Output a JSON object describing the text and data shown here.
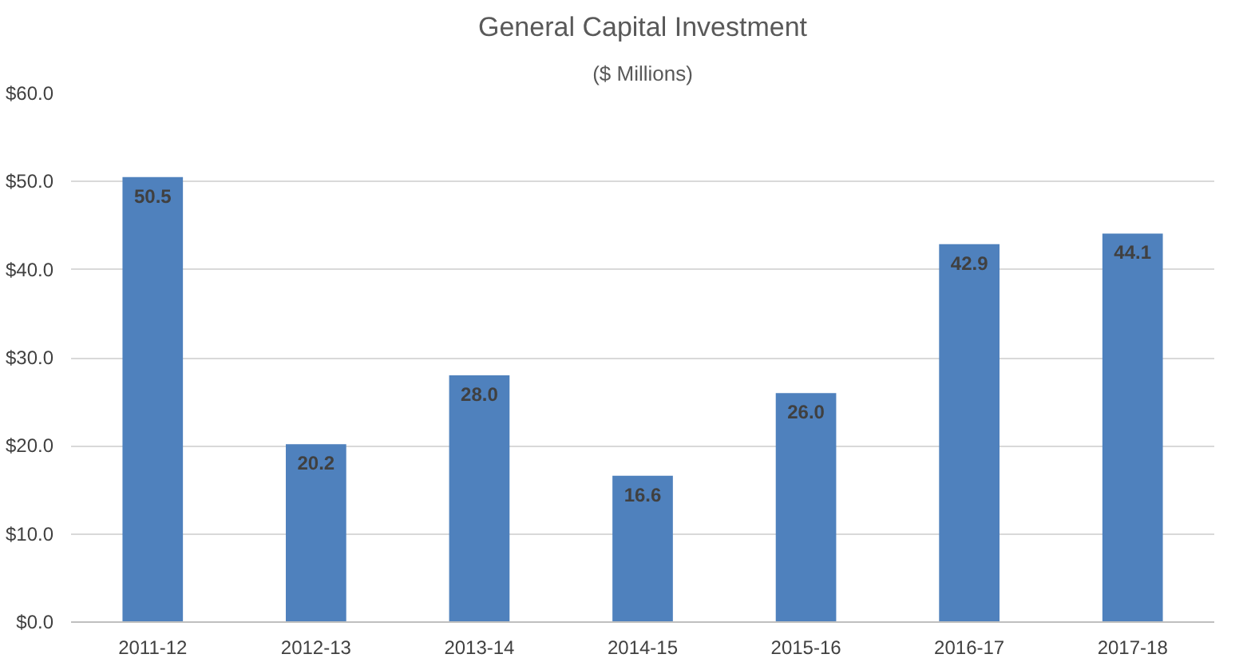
{
  "chart_data": {
    "type": "bar",
    "title": "General Capital Investment",
    "subtitle": "($ Millions)",
    "categories": [
      "2011-12",
      "2012-13",
      "2013-14",
      "2014-15",
      "2015-16",
      "2016-17",
      "2017-18"
    ],
    "values": [
      50.5,
      20.2,
      28.0,
      16.6,
      26.0,
      42.9,
      44.1
    ],
    "value_labels": [
      "50.5",
      "20.2",
      "28.0",
      "16.6",
      "26.0",
      "42.9",
      "44.1"
    ],
    "color": "#4f81bd",
    "ylim": [
      0,
      60
    ],
    "yticks": [
      {
        "value": 0,
        "label": "$0.0"
      },
      {
        "value": 10,
        "label": "$10.0"
      },
      {
        "value": 20,
        "label": "$20.0"
      },
      {
        "value": 30,
        "label": "$30.0"
      },
      {
        "value": 40,
        "label": "$40.0"
      },
      {
        "value": 50,
        "label": "$50.0"
      },
      {
        "value": 60,
        "label": "$60.0"
      }
    ],
    "grid": "y"
  }
}
